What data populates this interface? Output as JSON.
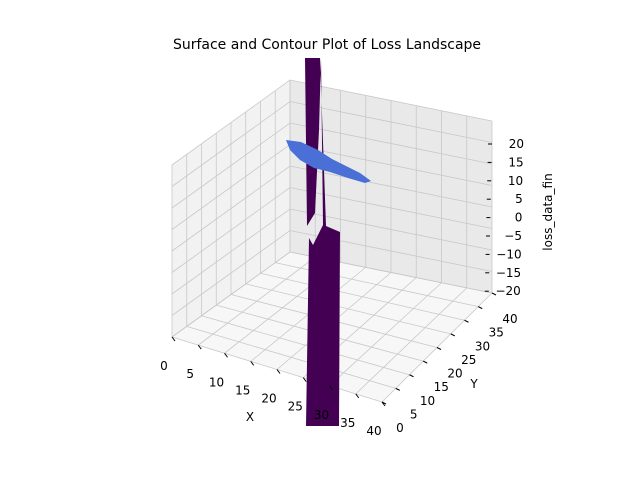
{
  "chart_data": {
    "type": "surface3d",
    "title": "Surface and Contour Plot of Loss Landscape",
    "xlabel": "X",
    "ylabel": "Y",
    "zlabel": "loss_data_fin",
    "xlim": [
      0,
      40
    ],
    "ylim": [
      0,
      40
    ],
    "zlim": [
      -20,
      20
    ],
    "x_ticks": [
      "0",
      "5",
      "10",
      "15",
      "20",
      "25",
      "30",
      "35",
      "40"
    ],
    "y_ticks": [
      "0",
      "5",
      "10",
      "15",
      "20",
      "25",
      "30",
      "35",
      "40"
    ],
    "z_ticks": [
      "20",
      "15",
      "10",
      "5",
      "0",
      "−5",
      "−10",
      "−15",
      "−20"
    ],
    "grid": true,
    "colors": {
      "pane_left": "#f2f2f2",
      "pane_right": "#e9e9e9",
      "pane_floor": "#f7f7f7",
      "grid": "#c8c8c8",
      "spike": "#440154",
      "contour": "#4a6fd6"
    }
  }
}
